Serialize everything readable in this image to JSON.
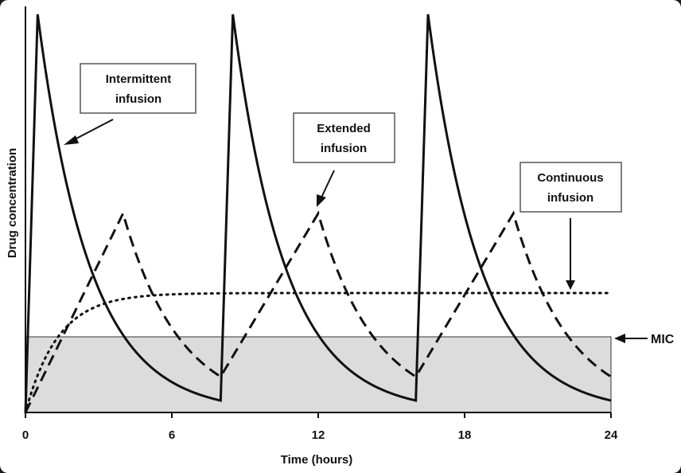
{
  "chart_data": {
    "type": "line",
    "xlabel": "Time (hours)",
    "ylabel": "Drug concentration",
    "xlim": [
      0,
      24
    ],
    "x_ticks": [
      "0",
      "6",
      "12",
      "18",
      "24"
    ],
    "grid": false,
    "mic": {
      "label": "MIC",
      "level": 0.19
    },
    "series": [
      {
        "name": "Intermittent infusion",
        "style": "solid",
        "doses": [
          0,
          8,
          16
        ],
        "infusion_hours": 0.5,
        "peak": 1.0,
        "trough": 0.03
      },
      {
        "name": "Extended infusion",
        "style": "dashed",
        "doses": [
          0,
          8,
          16
        ],
        "infusion_hours": 4,
        "peak": 0.5,
        "trough": 0.09
      },
      {
        "name": "Continuous infusion",
        "style": "dotted",
        "plateau": 0.3
      }
    ],
    "annotations": [
      {
        "line1": "Intermittent",
        "line2": "infusion"
      },
      {
        "line1": "Extended",
        "line2": "infusion"
      },
      {
        "line1": "Continuous",
        "line2": "infusion"
      }
    ]
  }
}
